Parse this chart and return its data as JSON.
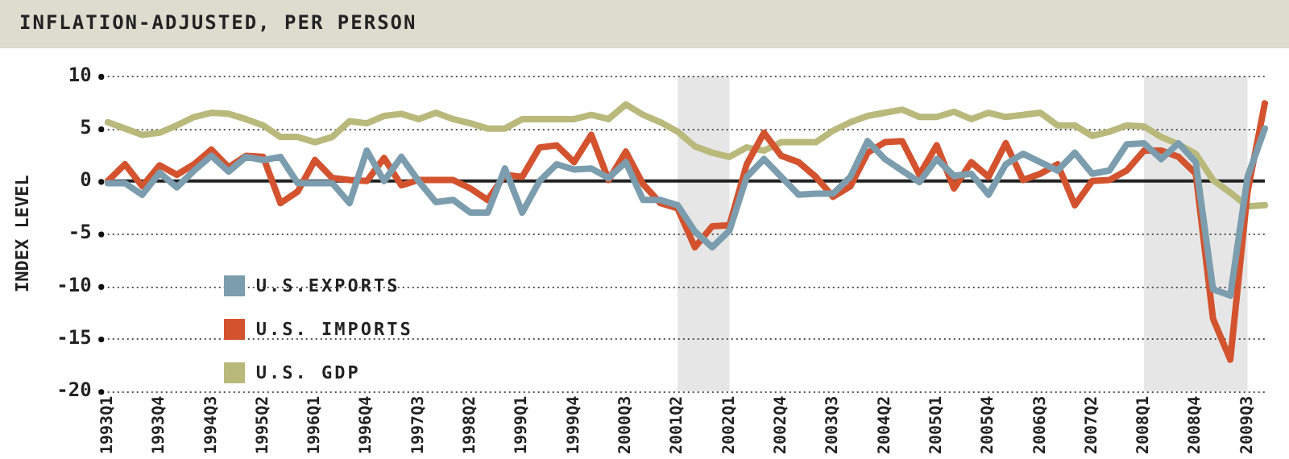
{
  "chart_data": {
    "type": "line",
    "title": "INFLATION-ADJUSTED, PER PERSON",
    "ylabel": "INDEX LEVEL",
    "categories": [
      "1993Q1",
      null,
      null,
      "1993Q4",
      null,
      null,
      "1994Q3",
      null,
      null,
      "1995Q2",
      null,
      null,
      "1996Q1",
      null,
      null,
      "1996Q4",
      null,
      null,
      "1997Q3",
      null,
      null,
      "1998Q2",
      null,
      null,
      "1999Q1",
      null,
      null,
      "1999Q4",
      null,
      null,
      "2000Q3",
      null,
      null,
      "2001Q2",
      null,
      null,
      "2002Q1",
      null,
      null,
      "2002Q4",
      null,
      null,
      "2003Q3",
      null,
      null,
      "2004Q2",
      null,
      null,
      "2005Q1",
      null,
      null,
      "2005Q4",
      null,
      null,
      "2006Q3",
      null,
      null,
      "2007Q2",
      null,
      null,
      "2008Q1",
      null,
      null,
      "2008Q4",
      null,
      null,
      "2009Q3",
      null
    ],
    "series": [
      {
        "name": "U.S.EXPORTS",
        "color": "#7b9dae",
        "values": [
          -0.2,
          -0.2,
          -1.3,
          0.8,
          -0.6,
          1.0,
          2.4,
          0.9,
          2.3,
          2.0,
          2.3,
          -0.2,
          -0.2,
          -0.2,
          -2.1,
          2.9,
          0.0,
          2.3,
          0.0,
          -2.0,
          -1.8,
          -3.0,
          -3.0,
          1.2,
          -3.0,
          0.0,
          1.6,
          1.1,
          1.2,
          0.3,
          1.8,
          -1.8,
          -1.8,
          -2.3,
          -4.8,
          -6.3,
          -4.7,
          0.4,
          2.1,
          0.4,
          -1.3,
          -1.2,
          -1.2,
          0.4,
          3.8,
          2.1,
          1.0,
          -0.1,
          2.1,
          0.5,
          0.7,
          -1.3,
          1.6,
          2.6,
          1.8,
          1.0,
          2.7,
          0.7,
          1.0,
          3.5,
          3.6,
          2.1,
          3.6,
          1.8,
          -10.3,
          -10.9,
          0.4,
          5.0
        ]
      },
      {
        "name": "U.S. IMPORTS",
        "color": "#d3532f",
        "values": [
          0,
          1.6,
          -0.5,
          1.5,
          0.6,
          1.6,
          3.0,
          1.3,
          2.4,
          2.3,
          -2.1,
          -1.0,
          2.0,
          0.3,
          0.1,
          0.0,
          2.2,
          -0.4,
          0.1,
          0.1,
          0.1,
          -0.7,
          -1.8,
          0.6,
          0.4,
          3.2,
          3.4,
          1.8,
          4.4,
          0.1,
          2.8,
          -0.3,
          -2.1,
          -2.6,
          -6.3,
          -4.3,
          -4.2,
          1.6,
          4.6,
          2.4,
          1.8,
          0.4,
          -1.5,
          -0.5,
          2.7,
          3.7,
          3.8,
          0.6,
          3.4,
          -0.7,
          1.8,
          0.4,
          3.6,
          0.1,
          0.7,
          1.6,
          -2.3,
          0,
          0.1,
          1.0,
          2.9,
          2.9,
          2.3,
          0.7,
          -13.1,
          -17.0,
          -1.0,
          7.4
        ]
      },
      {
        "name": "U.S. GDP",
        "color": "#b9b97c",
        "values": [
          5.6,
          5.0,
          4.4,
          4.6,
          5.3,
          6.1,
          6.5,
          6.4,
          5.9,
          5.3,
          4.2,
          4.2,
          3.7,
          4.2,
          5.7,
          5.5,
          6.2,
          6.4,
          5.9,
          6.5,
          5.9,
          5.5,
          5.0,
          5.0,
          5.9,
          5.9,
          5.9,
          5.9,
          6.3,
          5.9,
          7.3,
          6.3,
          5.6,
          4.7,
          3.3,
          2.7,
          2.3,
          3.2,
          2.9,
          3.7,
          3.7,
          3.7,
          4.8,
          5.6,
          6.2,
          6.5,
          6.8,
          6.1,
          6.1,
          6.6,
          5.9,
          6.5,
          6.1,
          6.3,
          6.5,
          5.3,
          5.3,
          4.3,
          4.7,
          5.3,
          5.2,
          4.2,
          3.5,
          2.6,
          0.1,
          -1.1,
          -2.4,
          -2.3
        ]
      }
    ],
    "ylim": [
      -20,
      10
    ],
    "yticks": [
      -20,
      -15,
      -10,
      -5,
      0,
      5,
      10
    ],
    "grid": "y",
    "legend": "bottom left",
    "marker": "none",
    "line_style": "solid",
    "ref_lines": [
      {
        "axis": "y",
        "value": 0,
        "color": "#222222"
      }
    ],
    "bands": [
      {
        "axis": "x",
        "from": "2001Q2",
        "to": "2002Q1",
        "color": "#e6e6e6"
      },
      {
        "axis": "x",
        "from": "2008Q1",
        "to": "2009Q3",
        "color": "#e6e6e6"
      }
    ]
  }
}
